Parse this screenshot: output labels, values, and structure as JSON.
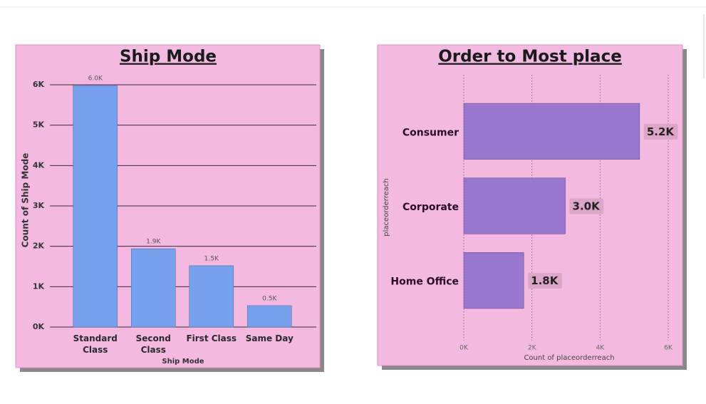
{
  "chart_data": [
    {
      "type": "column",
      "title": "Ship Mode",
      "x_label": "Ship Mode",
      "y_label": "Count of Ship Mode",
      "categories": [
        "Standard Class",
        "Second Class",
        "First Class",
        "Same Day"
      ],
      "values": [
        5980,
        1940,
        1520,
        530
      ],
      "value_labels": [
        "6.0K",
        "1.9K",
        "1.5K",
        "0.5K"
      ],
      "color": "#77a1ee",
      "ylim": [
        0,
        6000
      ],
      "yticks": [
        {
          "value": 0,
          "label": "0K"
        },
        {
          "value": 1000,
          "label": "1K"
        },
        {
          "value": 2000,
          "label": "2K"
        },
        {
          "value": 3000,
          "label": "3K"
        },
        {
          "value": 4000,
          "label": "4K"
        },
        {
          "value": 5000,
          "label": "5K"
        },
        {
          "value": 6000,
          "label": "6K"
        }
      ],
      "grid": true
    },
    {
      "type": "bar",
      "title": "Order to Most place",
      "x_label": "Count of placeorderreach",
      "y_label": "placeorderreach",
      "categories": [
        "Consumer",
        "Corporate",
        "Home Office"
      ],
      "values": [
        5160,
        2980,
        1760
      ],
      "value_labels": [
        "5.2K",
        "3.0K",
        "1.8K"
      ],
      "color": "#9a77cf",
      "xlim": [
        0,
        6000
      ],
      "xticks": [
        {
          "value": 0,
          "label": "0K"
        },
        {
          "value": 2000,
          "label": "2K"
        },
        {
          "value": 4000,
          "label": "4K"
        },
        {
          "value": 6000,
          "label": "6K"
        }
      ],
      "grid": true
    }
  ]
}
